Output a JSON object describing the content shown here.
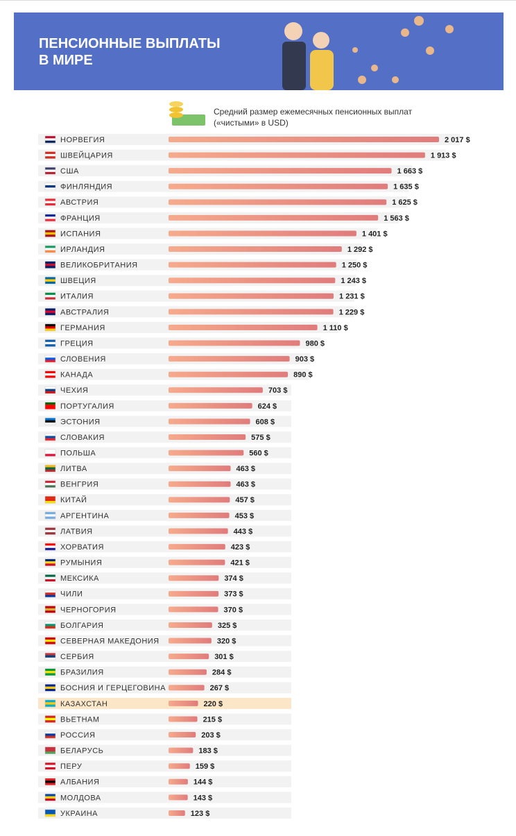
{
  "chart_data": {
    "type": "bar",
    "orientation": "horizontal",
    "title": "ПЕНСИОННЫЕ ВЫПЛАТЫ\nВ МИРЕ",
    "subtitle": "Средний размер ежемесячных пенсионных выплат\n(«чистыми» в USD)",
    "categories": [
      "НОРВЕГИЯ",
      "ШВЕЙЦАРИЯ",
      "США",
      "ФИНЛЯНДИЯ",
      "АВСТРИЯ",
      "ФРАНЦИЯ",
      "ИСПАНИЯ",
      "ИРЛАНДИЯ",
      "ВЕЛИКОБРИТАНИЯ",
      "ШВЕЦИЯ",
      "ИТАЛИЯ",
      "АВСТРАЛИЯ",
      "ГЕРМАНИЯ",
      "ГРЕЦИЯ",
      "СЛОВЕНИЯ",
      "КАНАДА",
      "ЧЕХИЯ",
      "ПОРТУГАЛИЯ",
      "ЭСТОНИЯ",
      "СЛОВАКИЯ",
      "ПОЛЬША",
      "ЛИТВА",
      "ВЕНГРИЯ",
      "КИТАЙ",
      "АРГЕНТИНА",
      "ЛАТВИЯ",
      "ХОРВАТИЯ",
      "РУМЫНИЯ",
      "МЕКСИКА",
      "ЧИЛИ",
      "ЧЕРНОГОРИЯ",
      "БОЛГАРИЯ",
      "СЕВЕРНАЯ МАКЕДОНИЯ",
      "СЕРБИЯ",
      "БРАЗИЛИЯ",
      "БОСНИЯ И ГЕРЦЕГОВИНА",
      "КАЗАХСТАН",
      "ВЬЕТНАМ",
      "РОССИЯ",
      "БЕЛАРУСЬ",
      "ПЕРУ",
      "АЛБАНИЯ",
      "МОЛДОВА",
      "УКРАИНА"
    ],
    "values": [
      2017,
      1913,
      1663,
      1635,
      1625,
      1563,
      1401,
      1292,
      1250,
      1243,
      1231,
      1229,
      1110,
      980,
      903,
      890,
      703,
      624,
      608,
      575,
      560,
      463,
      463,
      457,
      453,
      443,
      423,
      421,
      374,
      373,
      370,
      325,
      320,
      301,
      284,
      267,
      220,
      215,
      203,
      183,
      159,
      144,
      143,
      123
    ],
    "value_labels": [
      "2 017 $",
      "1 913 $",
      "1 663 $",
      "1 635 $",
      "1 625 $",
      "1 563 $",
      "1 401 $",
      "1 292 $",
      "1 250 $",
      "1 243 $",
      "1 231 $",
      "1 229 $",
      "1 110 $",
      "980 $",
      "903 $",
      "890 $",
      "703 $",
      "624 $",
      "608 $",
      "575 $",
      "560 $",
      "463 $",
      "463 $",
      "457 $",
      "453 $",
      "443 $",
      "423 $",
      "421 $",
      "374 $",
      "373 $",
      "370 $",
      "325 $",
      "320 $",
      "301 $",
      "284 $",
      "267 $",
      "220 $",
      "215 $",
      "203 $",
      "183 $",
      "159 $",
      "144 $",
      "143 $",
      "123 $"
    ],
    "color": "#e58476",
    "highlight_index": 36,
    "highlight_color": "#fbe6c8"
  }
}
